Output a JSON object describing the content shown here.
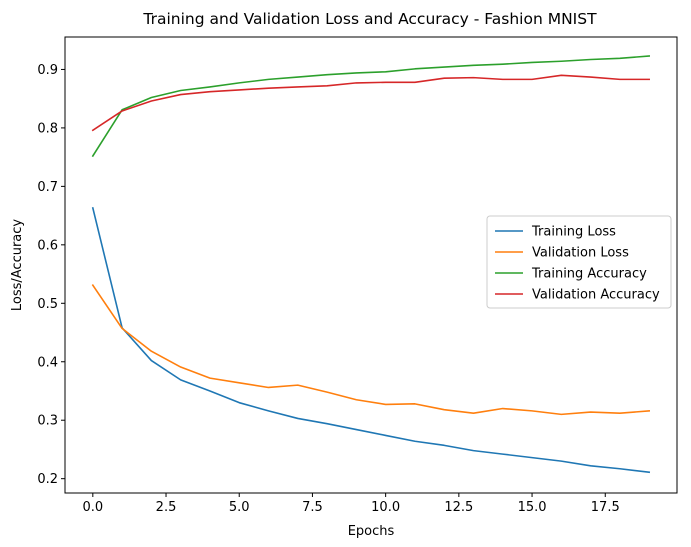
{
  "chart_data": {
    "type": "line",
    "title": "Training and Validation Loss and Accuracy - Fashion MNIST",
    "xlabel": "Epochs",
    "ylabel": "Loss/Accuracy",
    "xlim": [
      -0.95,
      19.95
    ],
    "ylim": [
      0.1755,
      0.9555
    ],
    "xticks": [
      0.0,
      2.5,
      5.0,
      7.5,
      10.0,
      12.5,
      15.0,
      17.5
    ],
    "yticks": [
      0.2,
      0.3,
      0.4,
      0.5,
      0.6,
      0.7,
      0.8,
      0.9
    ],
    "grid": false,
    "legend_position": "center right",
    "x": [
      0,
      1,
      2,
      3,
      4,
      5,
      6,
      7,
      8,
      9,
      10,
      11,
      12,
      13,
      14,
      15,
      16,
      17,
      18,
      19
    ],
    "series": [
      {
        "name": "Training Loss",
        "color": "#1f77b4",
        "values": [
          0.663,
          0.458,
          0.402,
          0.369,
          0.35,
          0.33,
          0.316,
          0.303,
          0.294,
          0.284,
          0.274,
          0.264,
          0.257,
          0.248,
          0.242,
          0.236,
          0.23,
          0.222,
          0.217,
          0.211
        ]
      },
      {
        "name": "Validation Loss",
        "color": "#ff7f0e",
        "values": [
          0.531,
          0.457,
          0.418,
          0.391,
          0.372,
          0.364,
          0.356,
          0.36,
          0.348,
          0.335,
          0.327,
          0.328,
          0.318,
          0.312,
          0.32,
          0.316,
          0.31,
          0.314,
          0.312,
          0.316
        ]
      },
      {
        "name": "Training Accuracy",
        "color": "#2ca02c",
        "values": [
          0.752,
          0.831,
          0.852,
          0.864,
          0.87,
          0.877,
          0.883,
          0.887,
          0.891,
          0.894,
          0.896,
          0.901,
          0.904,
          0.907,
          0.909,
          0.912,
          0.914,
          0.917,
          0.919,
          0.923
        ]
      },
      {
        "name": "Validation Accuracy",
        "color": "#d62728",
        "values": [
          0.796,
          0.829,
          0.846,
          0.857,
          0.862,
          0.865,
          0.868,
          0.87,
          0.872,
          0.877,
          0.878,
          0.878,
          0.885,
          0.886,
          0.883,
          0.883,
          0.89,
          0.887,
          0.883,
          0.883
        ]
      }
    ]
  }
}
